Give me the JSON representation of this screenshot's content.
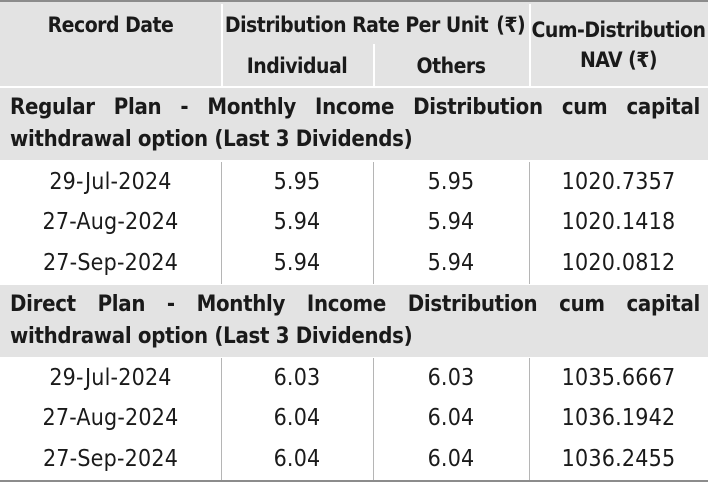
{
  "header": {
    "record_date": "Record Date",
    "distribution_rate": "Distribution Rate Per Unit",
    "currency_symbol": "(₹)",
    "individual": "Individual",
    "others": "Others",
    "cum_nav_line1": "Cum-Distribution",
    "cum_nav_line2": "NAV (₹)"
  },
  "sections": [
    {
      "title": "Regular Plan - Monthly Income Distribution cum capital withdrawal option (Last 3 Dividends)",
      "rows": [
        {
          "date": "29-Jul-2024",
          "individual": "5.95",
          "others": "5.95",
          "nav": "1020.7357"
        },
        {
          "date": "27-Aug-2024",
          "individual": "5.94",
          "others": "5.94",
          "nav": "1020.1418"
        },
        {
          "date": "27-Sep-2024",
          "individual": "5.94",
          "others": "5.94",
          "nav": "1020.0812"
        }
      ]
    },
    {
      "title": "Direct Plan - Monthly Income Distribution cum capital withdrawal option (Last 3 Dividends)",
      "rows": [
        {
          "date": "29-Jul-2024",
          "individual": "6.03",
          "others": "6.03",
          "nav": "1035.6667"
        },
        {
          "date": "27-Aug-2024",
          "individual": "6.04",
          "others": "6.04",
          "nav": "1036.1942"
        },
        {
          "date": "27-Sep-2024",
          "individual": "6.04",
          "others": "6.04",
          "nav": "1036.2455"
        }
      ]
    }
  ]
}
